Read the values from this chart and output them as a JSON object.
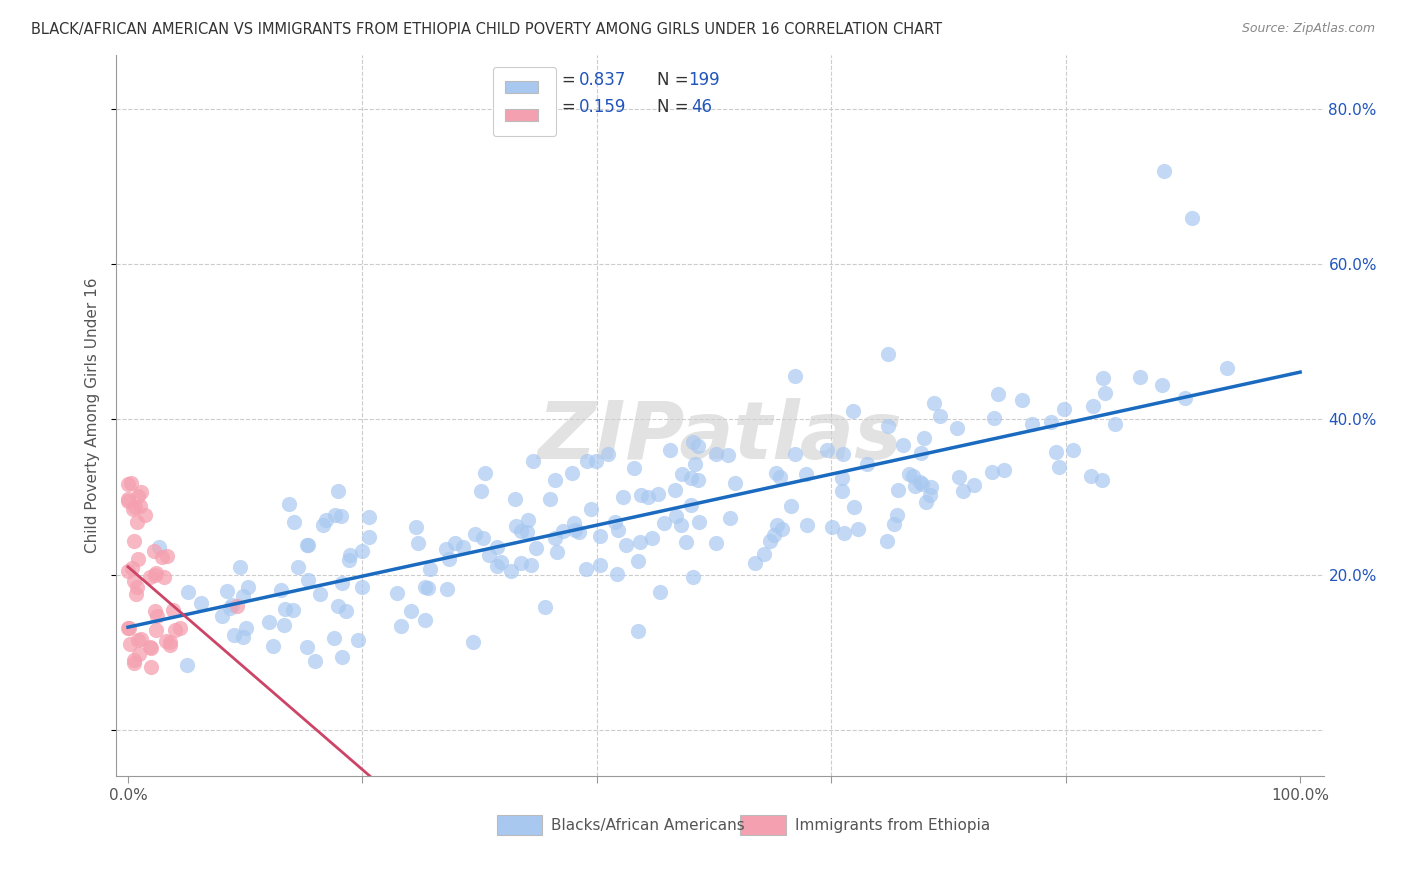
{
  "title": "BLACK/AFRICAN AMERICAN VS IMMIGRANTS FROM ETHIOPIA CHILD POVERTY AMONG GIRLS UNDER 16 CORRELATION CHART",
  "source": "Source: ZipAtlas.com",
  "ylabel": "Child Poverty Among Girls Under 16",
  "blue_R": 0.837,
  "blue_N": 199,
  "pink_R": 0.159,
  "pink_N": 46,
  "blue_label": "Blacks/African Americans",
  "pink_label": "Immigrants from Ethiopia",
  "xlim": [
    -0.01,
    1.02
  ],
  "ylim": [
    -0.06,
    0.87
  ],
  "xticks": [
    0.0,
    0.2,
    0.4,
    0.6,
    0.8,
    1.0
  ],
  "xticklabels": [
    "0.0%",
    "",
    "",
    "",
    "",
    "100.0%"
  ],
  "yticks": [
    0.0,
    0.2,
    0.4,
    0.6,
    0.8
  ],
  "yticklabels": [
    "",
    "20.0%",
    "40.0%",
    "60.0%",
    "80.0%"
  ],
  "blue_color": "#a8c8f0",
  "pink_color": "#f5a0b0",
  "blue_line_color": "#1a6bbf",
  "pink_line_color": "#cc4466",
  "pink_dash_color": "#cccccc",
  "grid_color": "#cccccc",
  "watermark": "ZIPatlas",
  "bg_color": "#ffffff",
  "legend_color": "#2255bb",
  "legend_N_color": "#2255bb"
}
